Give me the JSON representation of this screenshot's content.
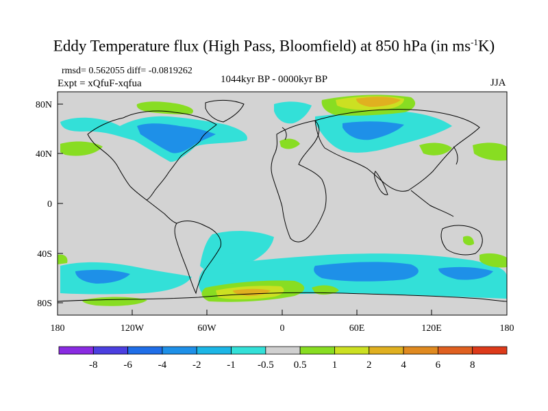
{
  "title": {
    "main": "Eddy Temperature flux (High Pass, Bloomfield) at 850 hPa (in ms",
    "sup": "-1",
    "end": "K)"
  },
  "stats": {
    "rmsd_text": "rmsd= 0.562055 diff= -0.0819262"
  },
  "experiment": "Expt = xQfuF-xqfua",
  "period": "1044kyr BP - 0000kyr BP",
  "season": "JJA",
  "axes": {
    "lon_labels": [
      "180",
      "120W",
      "60W",
      "0",
      "60E",
      "120E",
      "180"
    ],
    "lat_labels": [
      "80N",
      "40N",
      "0",
      "40S",
      "80S"
    ]
  },
  "colorbar": {
    "labels": [
      "-8",
      "-6",
      "-4",
      "-2",
      "-1",
      "-0.5",
      "0.5",
      "1",
      "2",
      "4",
      "6",
      "8"
    ],
    "colors": [
      "#8a2be2",
      "#4b3fe0",
      "#1f6ee8",
      "#1e90e8",
      "#1cb6e6",
      "#33e0d8",
      "#d0d0d0",
      "#88dd22",
      "#cce022",
      "#e0b020",
      "#e08a20",
      "#e06020",
      "#dd3a1a"
    ]
  },
  "map_colors": {
    "ocean_land_neutral": "#d3d3d3",
    "cyan": "#33e0d8",
    "light_blue": "#1cb6e6",
    "blue": "#1e90e8",
    "green": "#88dd22",
    "yellow": "#cce022",
    "orange": "#e0b020"
  }
}
